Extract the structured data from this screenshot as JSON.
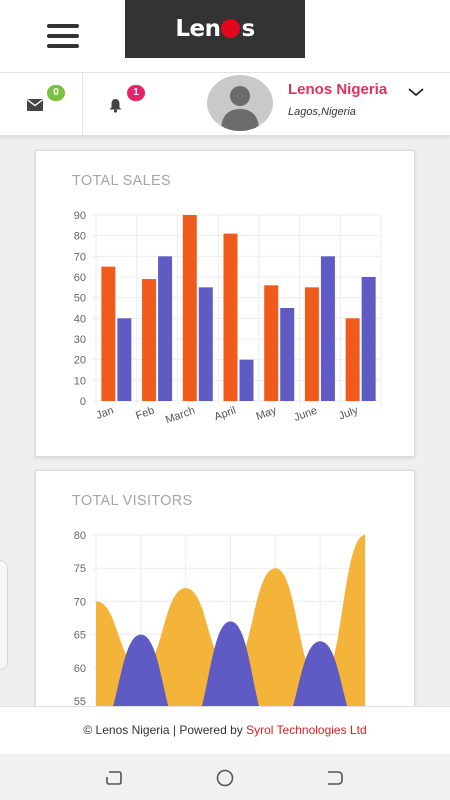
{
  "header": {
    "logo_text_left": "Len",
    "logo_text_right": "s",
    "menu_icon": "hamburger-icon"
  },
  "user_bar": {
    "messages_badge": "0",
    "notifications_badge": "1",
    "user_name": "Lenos Nigeria",
    "user_location": "Lagos,Nigeria"
  },
  "sales_card": {
    "title": "TOTAL SALES"
  },
  "visitors_card": {
    "title": "TOTAL VISITORS"
  },
  "footer": {
    "prefix": "© Lenos Nigeria | Powered by ",
    "brand": "Syrol Technologies Ltd"
  },
  "colors": {
    "orange": "#f05a1a",
    "indigo": "#5e5cc4",
    "gold": "#f4b43a",
    "badge_green": "#7ac142",
    "badge_pink": "#e6246a",
    "name_pink": "#e2305e"
  },
  "chart_data": [
    {
      "type": "bar",
      "title": "TOTAL SALES",
      "categories": [
        "Jan",
        "Feb",
        "March",
        "April",
        "May",
        "June",
        "July"
      ],
      "series": [
        {
          "values": [
            65,
            59,
            90,
            81,
            56,
            55,
            40
          ],
          "color": "#f05a1a"
        },
        {
          "values": [
            40,
            70,
            55,
            20,
            45,
            70,
            60
          ],
          "color": "#5e5cc4"
        }
      ],
      "ylim": [
        0,
        90
      ],
      "yticks": [
        0,
        10,
        20,
        30,
        40,
        50,
        60,
        70,
        80,
        90
      ],
      "grid": true
    },
    {
      "type": "area",
      "title": "TOTAL VISITORS",
      "yticks": [
        55,
        60,
        65,
        70,
        75,
        80
      ],
      "ylim_visible": [
        55,
        80
      ],
      "series": [
        {
          "color": "#f4b43a",
          "points": [
            [
              0,
              70
            ],
            [
              1,
              60
            ],
            [
              2,
              72
            ],
            [
              3,
              60
            ],
            [
              4,
              75
            ],
            [
              5,
              58
            ],
            [
              6,
              80
            ]
          ]
        },
        {
          "color": "#5e5cc4",
          "points": [
            [
              0,
              50
            ],
            [
              1,
              65
            ],
            [
              2,
              50
            ],
            [
              3,
              67
            ],
            [
              4,
              50
            ],
            [
              5,
              64
            ],
            [
              6,
              50
            ]
          ]
        }
      ],
      "grid": true
    }
  ]
}
